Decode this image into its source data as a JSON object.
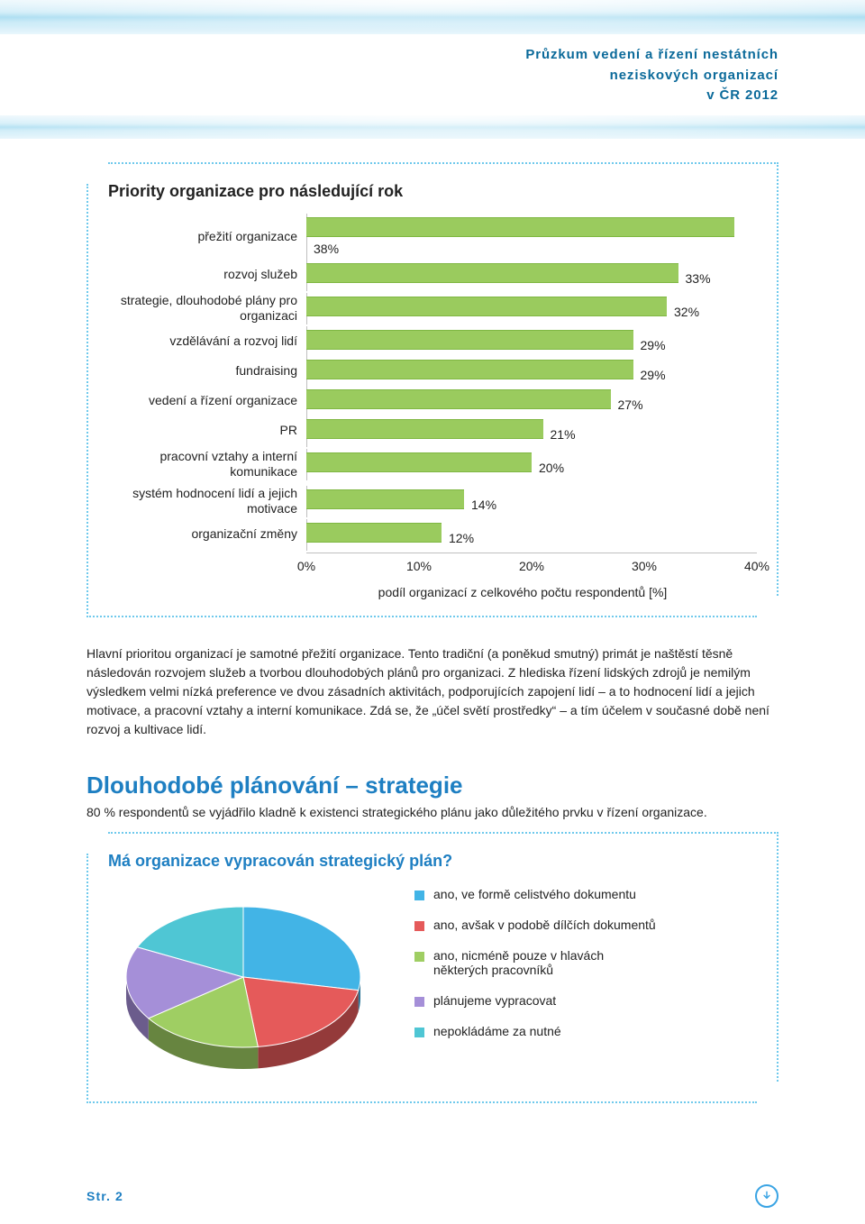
{
  "header": {
    "line1": "Průzkum vedení a řízení nestátních",
    "line2": "neziskových organizací",
    "line3": "v ČR 2012"
  },
  "bar_chart": {
    "title": "Priority organizace pro následující rok",
    "x_label": "podíl organizací z celkového počtu respondentů [%]",
    "x_max": 40,
    "ticks": [
      "0%",
      "10%",
      "20%",
      "30%",
      "40%"
    ],
    "bar_color": "#9acb5e",
    "bar_border": "#7fb742",
    "items": [
      {
        "label": "přežití organizace",
        "value": 38,
        "display": "38%"
      },
      {
        "label": "rozvoj služeb",
        "value": 33,
        "display": "33%"
      },
      {
        "label": "strategie, dlouhodobé plány pro organizaci",
        "value": 32,
        "display": "32%"
      },
      {
        "label": "vzdělávání a rozvoj lidí",
        "value": 29,
        "display": "29%"
      },
      {
        "label": "fundraising",
        "value": 29,
        "display": "29%"
      },
      {
        "label": "vedení a řízení organizace",
        "value": 27,
        "display": "27%"
      },
      {
        "label": "PR",
        "value": 21,
        "display": "21%"
      },
      {
        "label": "pracovní vztahy a interní komunikace",
        "value": 20,
        "display": "20%"
      },
      {
        "label": "systém hodnocení lidí a jejich motivace",
        "value": 14,
        "display": "14%"
      },
      {
        "label": "organizační změny",
        "value": 12,
        "display": "12%"
      }
    ]
  },
  "paragraph": "Hlavní prioritou organizací je samotné přežití organizace. Tento tradiční (a poněkud smutný) primát je naštěstí těsně následován rozvojem služeb a tvorbou dlouhodobých plánů pro organizaci. Z hlediska řízení lidských zdrojů je nemilým výsledkem velmi nízká preference ve dvou zásadních aktivitách, podporujících zapojení lidí – a to hodnocení lidí a jejich motivace, a pracovní vztahy a interní komunikace. Zdá se, že „účel světí prostředky“ – a tím účelem v současné době není rozvoj a kultivace lidí.",
  "section": {
    "heading": "Dlouhodobé plánování – strategie",
    "sub": "80 % respondentů se vyjádřilo kladně k existenci strategického plánu jako důležitého prvku v řízení organizace."
  },
  "pie_chart": {
    "title": "Má organizace vypracován strategický plán?",
    "slices": [
      {
        "label": "ano, ve formě celistvého dokumentu",
        "value": 28,
        "color": "#42b4e6"
      },
      {
        "label": "ano, avšak v podobě dílčích dokumentů",
        "value": 20,
        "color": "#e55a5a"
      },
      {
        "label": "ano, nicméně pouze v hlavách některých pracovníků",
        "value": 17,
        "color": "#9fce63"
      },
      {
        "label": "plánujeme vypracovat",
        "value": 17,
        "color": "#a58fd8"
      },
      {
        "label": "nepokládáme za nutné",
        "value": 18,
        "color": "#4fc6d4"
      }
    ]
  },
  "footer": {
    "page": "Str. 2"
  }
}
